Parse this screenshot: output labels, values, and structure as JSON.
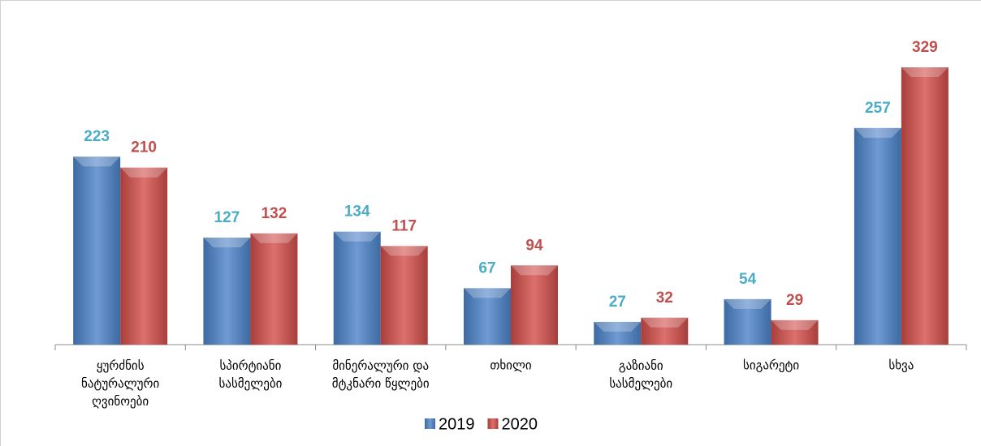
{
  "chart_data": {
    "type": "bar",
    "categories": [
      "ყურძნის\nნატურალური\nღვინოები",
      "სპირტიანი\nსასმელები",
      "მინერალური და\nმტკნარი წყლები",
      "თხილი",
      "გაზიანი\nსასმელები",
      "სიგარეტი",
      "სხვა"
    ],
    "series": [
      {
        "name": "2019",
        "color": "#4f81bd",
        "label_color": "#4bacc6",
        "values": [
          223,
          127,
          134,
          67,
          27,
          54,
          257
        ]
      },
      {
        "name": "2020",
        "color": "#c0504d",
        "label_color": "#c0504d",
        "values": [
          210,
          132,
          117,
          94,
          32,
          29,
          329
        ]
      }
    ],
    "legend": "bottom"
  }
}
